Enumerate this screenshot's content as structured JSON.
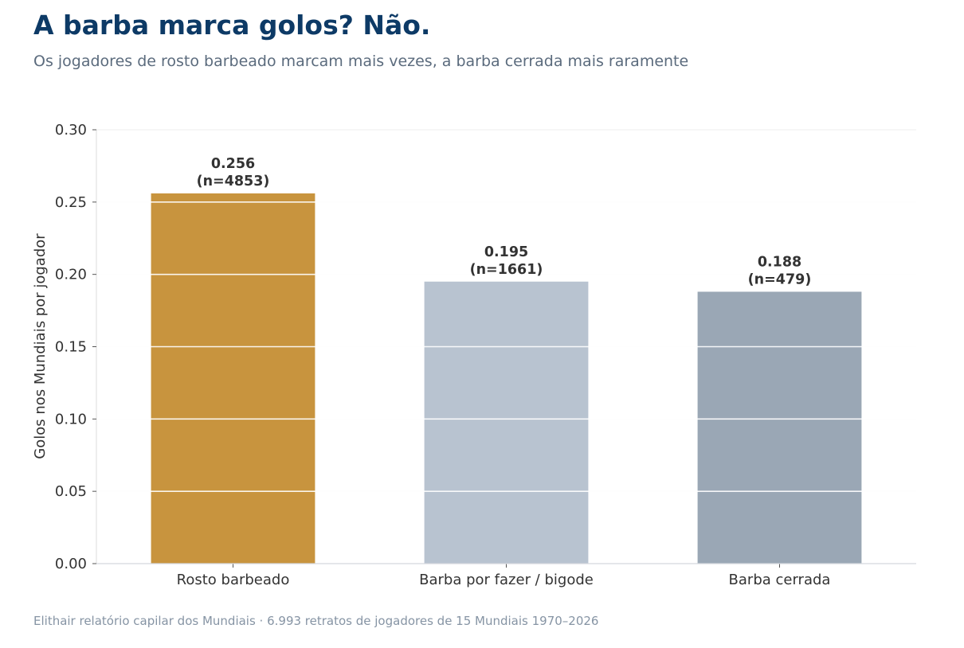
{
  "header": {
    "title": "A barba marca golos? Não.",
    "subtitle": "Os jogadores de rosto barbeado marcam mais vezes, a barba cerrada mais raramente"
  },
  "footer": {
    "source": "Elithair relatório capilar dos Mundiais  ·  6.993 retratos de jogadores de 15 Mundiais 1970–2026"
  },
  "chart_data": {
    "type": "bar",
    "title": "A barba marca golos? Não.",
    "subtitle": "Os jogadores de rosto barbeado marcam mais vezes, a barba cerrada mais raramente",
    "ylabel": "Golos nos Mundiais por jogador",
    "xlabel": "",
    "categories": [
      "Rosto barbeado",
      "Barba por fazer / bigode",
      "Barba cerrada"
    ],
    "values": [
      0.256,
      0.195,
      0.188
    ],
    "value_labels": [
      "0.256",
      "0.195",
      "0.188"
    ],
    "n_labels": [
      "(n=4853)",
      "(n=1661)",
      "(n=479)"
    ],
    "colors": [
      "#c8943e",
      "#b8c3d0",
      "#9aa7b5"
    ],
    "ylim": [
      0,
      0.3
    ],
    "yticks": [
      0,
      0.05,
      0.1,
      0.15,
      0.2,
      0.25,
      0.3
    ],
    "ytick_labels": [
      "0.00",
      "0.05",
      "0.10",
      "0.15",
      "0.20",
      "0.25",
      "0.30"
    ],
    "grid": true
  }
}
